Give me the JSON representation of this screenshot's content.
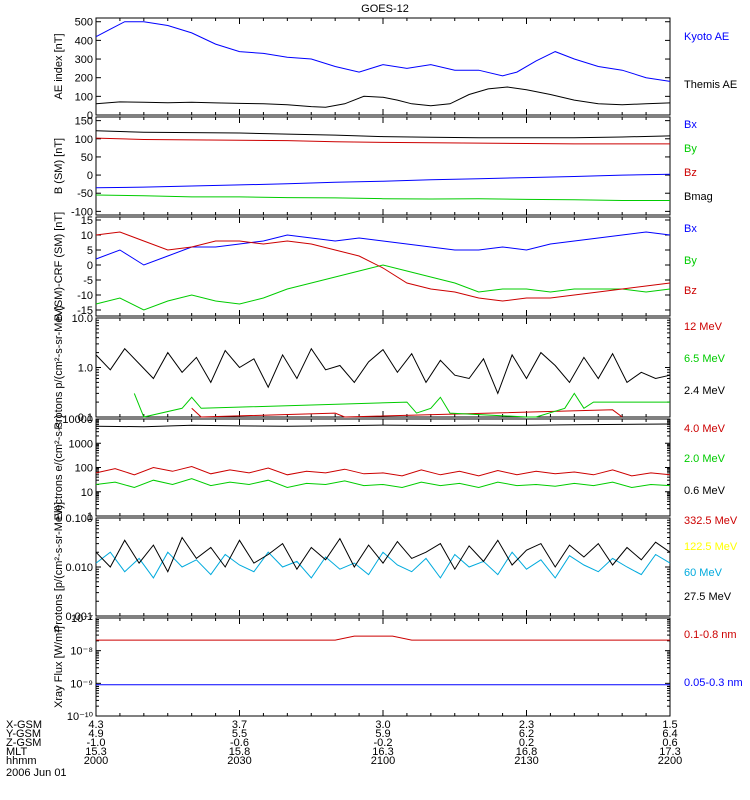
{
  "title": "GOES-12",
  "colors": {
    "blue": "#0000ff",
    "black": "#000000",
    "red": "#cc0000",
    "green": "#00cc00",
    "yellow": "#ffff00",
    "cyan": "#00aadd"
  },
  "chart_data": [
    {
      "type": "line",
      "ylabel": "AE index [nT]",
      "ylim": [
        0,
        520
      ],
      "yticks": [
        "500",
        "400",
        "300",
        "200",
        "100",
        "0"
      ],
      "tickvals": [
        500,
        400,
        300,
        200,
        100,
        0
      ],
      "series": [
        {
          "name": "Kyoto AE",
          "color": "#0000ff",
          "x": [
            0,
            3,
            6,
            10,
            15,
            20,
            25,
            30,
            35,
            40,
            45,
            50,
            55,
            60,
            65,
            70,
            75,
            80,
            85,
            88,
            92,
            96,
            100,
            105,
            110,
            115,
            120
          ],
          "y": [
            420,
            460,
            500,
            500,
            480,
            440,
            380,
            340,
            330,
            310,
            300,
            260,
            230,
            270,
            250,
            270,
            240,
            240,
            210,
            230,
            290,
            340,
            300,
            260,
            240,
            200,
            180
          ]
        },
        {
          "name": "Themis AE",
          "color": "#000000",
          "x": [
            0,
            5,
            10,
            15,
            20,
            25,
            30,
            35,
            40,
            45,
            48,
            52,
            56,
            60,
            63,
            66,
            70,
            74,
            78,
            82,
            86,
            90,
            95,
            100,
            105,
            110,
            115,
            120
          ],
          "y": [
            60,
            70,
            68,
            66,
            68,
            65,
            62,
            60,
            55,
            45,
            42,
            60,
            100,
            95,
            80,
            60,
            50,
            60,
            110,
            140,
            150,
            135,
            110,
            80,
            60,
            55,
            60,
            65
          ]
        }
      ]
    },
    {
      "type": "line",
      "ylabel": "B (SM) [nT]",
      "ylim": [
        -110,
        160
      ],
      "yticks": [
        "150",
        "100",
        "50",
        "0",
        "-50",
        "-100"
      ],
      "tickvals": [
        150,
        100,
        50,
        0,
        -50,
        -100
      ],
      "series": [
        {
          "name": "Bx",
          "color": "#0000ff",
          "x": [
            0,
            10,
            20,
            30,
            40,
            50,
            60,
            70,
            80,
            90,
            100,
            110,
            120
          ],
          "y": [
            -35,
            -33,
            -30,
            -27,
            -24,
            -20,
            -17,
            -13,
            -10,
            -7,
            -4,
            0,
            2
          ]
        },
        {
          "name": "By",
          "color": "#00cc00",
          "x": [
            0,
            10,
            20,
            30,
            40,
            50,
            60,
            70,
            80,
            90,
            100,
            110,
            120
          ],
          "y": [
            -55,
            -57,
            -60,
            -60,
            -62,
            -63,
            -65,
            -66,
            -65,
            -67,
            -68,
            -70,
            -70
          ]
        },
        {
          "name": "Bz",
          "color": "#cc0000",
          "x": [
            0,
            10,
            20,
            30,
            40,
            50,
            60,
            70,
            80,
            90,
            100,
            110,
            120
          ],
          "y": [
            102,
            98,
            97,
            96,
            95,
            92,
            90,
            89,
            88,
            87,
            86,
            86,
            86
          ]
        },
        {
          "name": "Bmag",
          "color": "#000000",
          "x": [
            0,
            10,
            20,
            30,
            40,
            50,
            60,
            70,
            80,
            90,
            100,
            110,
            120
          ],
          "y": [
            122,
            118,
            117,
            116,
            113,
            110,
            106,
            104,
            103,
            103,
            103,
            105,
            108
          ]
        }
      ]
    },
    {
      "type": "line",
      "ylabel": "B (SM)-CRF (SM) [nT]",
      "ylim": [
        -17,
        16
      ],
      "yticks": [
        "15",
        "10",
        "5",
        "0",
        "-5",
        "-10",
        "-15"
      ],
      "tickvals": [
        15,
        10,
        5,
        0,
        -5,
        -10,
        -15
      ],
      "series": [
        {
          "name": "Bx",
          "color": "#0000ff",
          "x": [
            0,
            5,
            10,
            15,
            20,
            25,
            30,
            35,
            40,
            45,
            50,
            55,
            60,
            65,
            70,
            75,
            80,
            85,
            90,
            95,
            100,
            105,
            110,
            115,
            120
          ],
          "y": [
            2,
            5,
            0,
            3,
            6,
            6,
            7,
            8,
            10,
            9,
            8,
            9,
            8,
            7,
            6,
            5,
            5,
            6,
            5,
            7,
            8,
            9,
            10,
            11,
            10
          ]
        },
        {
          "name": "By",
          "color": "#00cc00",
          "x": [
            0,
            5,
            10,
            15,
            20,
            25,
            30,
            35,
            40,
            45,
            50,
            55,
            60,
            65,
            70,
            75,
            80,
            85,
            90,
            95,
            100,
            105,
            110,
            115,
            120
          ],
          "y": [
            -13,
            -11,
            -15,
            -12,
            -10,
            -12,
            -13,
            -11,
            -8,
            -6,
            -4,
            -2,
            0,
            -2,
            -4,
            -6,
            -9,
            -8,
            -8,
            -9,
            -8,
            -8,
            -8,
            -9,
            -8
          ]
        },
        {
          "name": "Bz",
          "color": "#cc0000",
          "x": [
            0,
            5,
            10,
            15,
            20,
            25,
            30,
            35,
            40,
            45,
            50,
            55,
            60,
            65,
            70,
            75,
            80,
            85,
            90,
            95,
            100,
            105,
            110,
            115,
            120
          ],
          "y": [
            10,
            11,
            8,
            5,
            6,
            8,
            8,
            7,
            8,
            7,
            5,
            3,
            -1,
            -6,
            -8,
            -9,
            -11,
            -12,
            -11,
            -11,
            -10,
            -9,
            -8,
            -7,
            -6
          ]
        }
      ]
    },
    {
      "type": "line",
      "ylabel": "Protons p/(cm²-s-sr-MeV)",
      "scale": "log",
      "ylim": [
        0.1,
        10.0
      ],
      "yticks": [
        "10.0",
        "1.0",
        "0.1"
      ],
      "tickvals": [
        10.0,
        1.0,
        0.1
      ],
      "series": [
        {
          "name": "12 MeV",
          "color": "#cc0000",
          "x": [
            20,
            22,
            50,
            52,
            108,
            110
          ],
          "y": [
            0.15,
            0.1,
            0.12,
            0.1,
            0.14,
            0.1
          ]
        },
        {
          "name": "6.5 MeV",
          "color": "#00cc00",
          "x": [
            8,
            10,
            18,
            20,
            22,
            65,
            67,
            70,
            72,
            74,
            90,
            92,
            98,
            100,
            102,
            104,
            120
          ],
          "y": [
            0.3,
            0.1,
            0.15,
            0.25,
            0.15,
            0.2,
            0.12,
            0.15,
            0.25,
            0.12,
            0.1,
            0.1,
            0.15,
            0.3,
            0.15,
            0.2,
            0.2
          ]
        },
        {
          "name": "2.4 MeV",
          "color": "#000000",
          "x": [
            0,
            3,
            6,
            9,
            12,
            15,
            18,
            21,
            24,
            27,
            30,
            33,
            36,
            39,
            42,
            45,
            48,
            51,
            54,
            57,
            60,
            63,
            66,
            69,
            72,
            75,
            78,
            81,
            84,
            87,
            90,
            93,
            96,
            99,
            102,
            105,
            108,
            111,
            114,
            117,
            120
          ],
          "y": [
            1.8,
            0.9,
            2.4,
            1.2,
            0.6,
            2.0,
            0.8,
            1.6,
            0.5,
            2.2,
            1.0,
            1.5,
            0.4,
            1.8,
            0.6,
            2.4,
            0.9,
            1.1,
            0.5,
            1.3,
            2.3,
            0.8,
            1.9,
            0.5,
            1.4,
            0.7,
            0.6,
            1.5,
            0.3,
            1.8,
            0.6,
            2.0,
            1.1,
            0.5,
            1.6,
            0.6,
            1.9,
            0.5,
            0.8,
            0.6,
            0.7
          ]
        }
      ]
    },
    {
      "type": "line",
      "ylabel": "Electrons e/(cm²-s-sr)",
      "scale": "log",
      "ylim": [
        1,
        10000
      ],
      "yticks": [
        "10000",
        "1000",
        "100",
        "10",
        "1"
      ],
      "tickvals": [
        10000,
        1000,
        100,
        10,
        1
      ],
      "series": [
        {
          "name": "4.0 MeV",
          "color": "#cc0000",
          "x": [
            0,
            4,
            8,
            12,
            16,
            20,
            24,
            28,
            32,
            36,
            40,
            44,
            48,
            52,
            56,
            60,
            64,
            68,
            72,
            76,
            80,
            84,
            88,
            92,
            96,
            100,
            104,
            108,
            112,
            116,
            120
          ],
          "y": [
            60,
            90,
            50,
            100,
            70,
            110,
            55,
            80,
            60,
            95,
            50,
            70,
            60,
            85,
            55,
            60,
            45,
            80,
            50,
            70,
            45,
            75,
            50,
            70,
            55,
            65,
            50,
            80,
            45,
            60,
            50
          ]
        },
        {
          "name": "2.0 MeV",
          "color": "#00cc00",
          "x": [
            0,
            4,
            8,
            12,
            16,
            20,
            24,
            28,
            32,
            36,
            40,
            44,
            48,
            52,
            56,
            60,
            64,
            68,
            72,
            76,
            80,
            84,
            88,
            92,
            96,
            100,
            104,
            108,
            112,
            116,
            120
          ],
          "y": [
            20,
            25,
            15,
            30,
            20,
            35,
            18,
            25,
            20,
            30,
            15,
            22,
            20,
            28,
            18,
            20,
            15,
            25,
            18,
            22,
            15,
            25,
            18,
            20,
            17,
            22,
            18,
            25,
            15,
            20,
            18
          ]
        },
        {
          "name": "0.6 MeV",
          "color": "#000000",
          "x": [
            0,
            10,
            20,
            30,
            40,
            50,
            60,
            70,
            80,
            90,
            100,
            110,
            120
          ],
          "y": [
            5000,
            4800,
            5500,
            5200,
            5000,
            5300,
            5600,
            5400,
            5600,
            5500,
            5800,
            6000,
            6200
          ]
        }
      ]
    },
    {
      "type": "line",
      "ylabel": "Protons [p/(cm²-s-sr-MeV)]",
      "scale": "log",
      "ylim": [
        0.001,
        0.1
      ],
      "yticks": [
        "0.100",
        "0.010",
        "0.001"
      ],
      "tickvals": [
        0.1,
        0.01,
        0.001
      ],
      "series": [
        {
          "name": "332.5 MeV",
          "color": "#cc0000",
          "x": [],
          "y": []
        },
        {
          "name": "122.5 MeV",
          "color": "#ffff00",
          "x": [],
          "y": []
        },
        {
          "name": "60 MeV",
          "color": "#00aadd",
          "x": [
            0,
            3,
            6,
            9,
            12,
            15,
            18,
            21,
            24,
            27,
            30,
            33,
            36,
            39,
            42,
            45,
            48,
            51,
            54,
            57,
            60,
            63,
            66,
            69,
            72,
            75,
            78,
            81,
            84,
            87,
            90,
            93,
            96,
            99,
            102,
            105,
            108,
            111,
            114,
            117,
            120
          ],
          "y": [
            0.012,
            0.02,
            0.008,
            0.015,
            0.006,
            0.02,
            0.01,
            0.014,
            0.007,
            0.018,
            0.011,
            0.008,
            0.02,
            0.01,
            0.013,
            0.006,
            0.016,
            0.009,
            0.012,
            0.007,
            0.02,
            0.011,
            0.008,
            0.015,
            0.006,
            0.018,
            0.01,
            0.013,
            0.007,
            0.02,
            0.009,
            0.014,
            0.006,
            0.017,
            0.011,
            0.008,
            0.015,
            0.01,
            0.007,
            0.018,
            0.012
          ]
        },
        {
          "name": "27.5 MeV",
          "color": "#000000",
          "x": [
            0,
            3,
            6,
            9,
            12,
            15,
            18,
            21,
            24,
            27,
            30,
            33,
            36,
            39,
            42,
            45,
            48,
            51,
            54,
            57,
            60,
            63,
            66,
            69,
            72,
            75,
            78,
            81,
            84,
            87,
            90,
            93,
            96,
            99,
            102,
            105,
            108,
            111,
            114,
            117,
            120
          ],
          "y": [
            0.02,
            0.01,
            0.035,
            0.012,
            0.028,
            0.008,
            0.04,
            0.015,
            0.025,
            0.01,
            0.035,
            0.012,
            0.018,
            0.03,
            0.009,
            0.025,
            0.014,
            0.038,
            0.01,
            0.028,
            0.012,
            0.033,
            0.015,
            0.02,
            0.03,
            0.009,
            0.027,
            0.013,
            0.035,
            0.011,
            0.022,
            0.03,
            0.01,
            0.028,
            0.016,
            0.03,
            0.011,
            0.025,
            0.014,
            0.032,
            0.02
          ]
        }
      ]
    },
    {
      "type": "line",
      "ylabel": "Xray Flux [W/m²]",
      "scale": "log",
      "ylim": [
        1e-10,
        1e-07
      ],
      "yticks": [
        "10⁻⁷",
        "10⁻⁸",
        "10⁻⁹",
        "10⁻¹⁰"
      ],
      "tickvals": [
        1e-07,
        1e-08,
        1e-09,
        1e-10
      ],
      "series": [
        {
          "name": "0.1-0.8 nm",
          "color": "#cc0000",
          "x": [
            0,
            50,
            54,
            62,
            66,
            120
          ],
          "y": [
            2.1e-08,
            2.1e-08,
            2.8e-08,
            2.8e-08,
            2.1e-08,
            2.1e-08
          ]
        },
        {
          "name": "0.05-0.3 nm",
          "color": "#0000ff",
          "x": [
            0,
            120
          ],
          "y": [
            9e-10,
            9e-10
          ]
        }
      ]
    }
  ],
  "xaxis": {
    "rows": [
      {
        "label": "X-GSM",
        "values": [
          "4.3",
          "3.7",
          "3.0",
          "2.3",
          "1.5"
        ]
      },
      {
        "label": "Y-GSM",
        "values": [
          "4.9",
          "5.5",
          "5.9",
          "6.2",
          "6.4"
        ]
      },
      {
        "label": "Z-GSM",
        "values": [
          "-1.0",
          "-0.6",
          "-0.2",
          "0.2",
          "0.6"
        ]
      },
      {
        "label": "MLT",
        "values": [
          "15.3",
          "15.8",
          "16.3",
          "16.8",
          "17.3"
        ]
      },
      {
        "label": "hhmm",
        "values": [
          "2000",
          "2030",
          "2100",
          "2130",
          "2200"
        ]
      }
    ],
    "date": "2006 Jun 01"
  }
}
